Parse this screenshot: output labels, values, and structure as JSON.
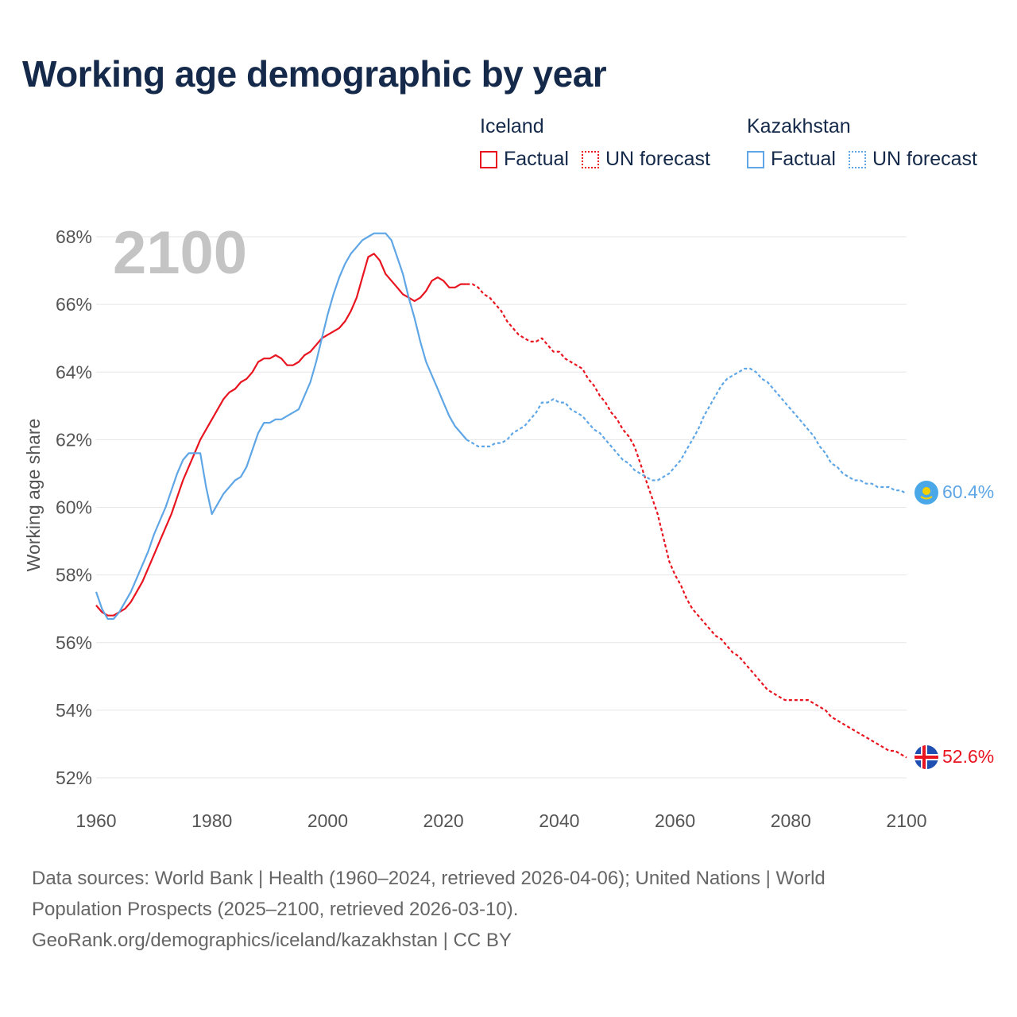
{
  "title": "Working age demographic by year",
  "legend": {
    "iceland": {
      "name": "Iceland",
      "factual": "Factual",
      "forecast": "UN forecast"
    },
    "kazakhstan": {
      "name": "Kazakhstan",
      "factual": "Factual",
      "forecast": "UN forecast"
    }
  },
  "year_watermark": "2100",
  "end_labels": {
    "kazakhstan": "60.4%",
    "iceland": "52.6%"
  },
  "footer": {
    "line1": "Data sources: World Bank | Health (1960–2024, retrieved 2026-04-06); United Nations | World",
    "line2": "Population Prospects (2025–2100, retrieved 2026-03-10).",
    "line3": "GeoRank.org/demographics/iceland/kazakhstan | CC BY"
  },
  "colors": {
    "iceland": "#e8141f",
    "kazakhstan": "#5ea6e6",
    "grid": "#e6e6e6",
    "axis_text": "#555555",
    "title": "#152a4a",
    "watermark": "#c4c4c4"
  },
  "chart_data": {
    "type": "line",
    "title": "Working age demographic by year",
    "xlabel": "",
    "ylabel": "Working age share",
    "xlim": [
      1960,
      2100
    ],
    "ylim": [
      52,
      68
    ],
    "xticks": [
      1960,
      1980,
      2000,
      2020,
      2040,
      2060,
      2080,
      2100
    ],
    "yticks": [
      52,
      54,
      56,
      58,
      60,
      62,
      64,
      66,
      68
    ],
    "ytick_labels": [
      "52%",
      "54%",
      "56%",
      "58%",
      "60%",
      "62%",
      "64%",
      "66%",
      "68%"
    ],
    "factual_end_year": 2024,
    "series": [
      {
        "name": "Iceland",
        "color": "#e8141f",
        "points": [
          [
            1960,
            57.1
          ],
          [
            1961,
            56.9
          ],
          [
            1962,
            56.8
          ],
          [
            1963,
            56.8
          ],
          [
            1964,
            56.9
          ],
          [
            1965,
            57.0
          ],
          [
            1966,
            57.2
          ],
          [
            1967,
            57.5
          ],
          [
            1968,
            57.8
          ],
          [
            1969,
            58.2
          ],
          [
            1970,
            58.6
          ],
          [
            1971,
            59.0
          ],
          [
            1972,
            59.4
          ],
          [
            1973,
            59.8
          ],
          [
            1974,
            60.3
          ],
          [
            1975,
            60.8
          ],
          [
            1976,
            61.2
          ],
          [
            1977,
            61.6
          ],
          [
            1978,
            62.0
          ],
          [
            1979,
            62.3
          ],
          [
            1980,
            62.6
          ],
          [
            1981,
            62.9
          ],
          [
            1982,
            63.2
          ],
          [
            1983,
            63.4
          ],
          [
            1984,
            63.5
          ],
          [
            1985,
            63.7
          ],
          [
            1986,
            63.8
          ],
          [
            1987,
            64.0
          ],
          [
            1988,
            64.3
          ],
          [
            1989,
            64.4
          ],
          [
            1990,
            64.4
          ],
          [
            1991,
            64.5
          ],
          [
            1992,
            64.4
          ],
          [
            1993,
            64.2
          ],
          [
            1994,
            64.2
          ],
          [
            1995,
            64.3
          ],
          [
            1996,
            64.5
          ],
          [
            1997,
            64.6
          ],
          [
            1998,
            64.8
          ],
          [
            1999,
            65.0
          ],
          [
            2000,
            65.1
          ],
          [
            2001,
            65.2
          ],
          [
            2002,
            65.3
          ],
          [
            2003,
            65.5
          ],
          [
            2004,
            65.8
          ],
          [
            2005,
            66.2
          ],
          [
            2006,
            66.8
          ],
          [
            2007,
            67.4
          ],
          [
            2008,
            67.5
          ],
          [
            2009,
            67.3
          ],
          [
            2010,
            66.9
          ],
          [
            2011,
            66.7
          ],
          [
            2012,
            66.5
          ],
          [
            2013,
            66.3
          ],
          [
            2014,
            66.2
          ],
          [
            2015,
            66.1
          ],
          [
            2016,
            66.2
          ],
          [
            2017,
            66.4
          ],
          [
            2018,
            66.7
          ],
          [
            2019,
            66.8
          ],
          [
            2020,
            66.7
          ],
          [
            2021,
            66.5
          ],
          [
            2022,
            66.5
          ],
          [
            2023,
            66.6
          ],
          [
            2024,
            66.6
          ],
          [
            2025,
            66.6
          ],
          [
            2026,
            66.5
          ],
          [
            2027,
            66.3
          ],
          [
            2028,
            66.2
          ],
          [
            2029,
            66.0
          ],
          [
            2030,
            65.8
          ],
          [
            2031,
            65.5
          ],
          [
            2032,
            65.3
          ],
          [
            2033,
            65.1
          ],
          [
            2034,
            65.0
          ],
          [
            2035,
            64.9
          ],
          [
            2036,
            64.9
          ],
          [
            2037,
            65.0
          ],
          [
            2038,
            64.8
          ],
          [
            2039,
            64.6
          ],
          [
            2040,
            64.6
          ],
          [
            2041,
            64.4
          ],
          [
            2042,
            64.3
          ],
          [
            2043,
            64.2
          ],
          [
            2044,
            64.1
          ],
          [
            2045,
            63.8
          ],
          [
            2046,
            63.6
          ],
          [
            2047,
            63.3
          ],
          [
            2048,
            63.1
          ],
          [
            2049,
            62.8
          ],
          [
            2050,
            62.6
          ],
          [
            2051,
            62.3
          ],
          [
            2052,
            62.1
          ],
          [
            2053,
            61.8
          ],
          [
            2054,
            61.3
          ],
          [
            2055,
            60.8
          ],
          [
            2056,
            60.3
          ],
          [
            2057,
            59.8
          ],
          [
            2058,
            59.1
          ],
          [
            2059,
            58.4
          ],
          [
            2060,
            58.0
          ],
          [
            2061,
            57.7
          ],
          [
            2062,
            57.3
          ],
          [
            2063,
            57.0
          ],
          [
            2064,
            56.8
          ],
          [
            2065,
            56.6
          ],
          [
            2066,
            56.4
          ],
          [
            2067,
            56.2
          ],
          [
            2068,
            56.1
          ],
          [
            2069,
            55.9
          ],
          [
            2070,
            55.7
          ],
          [
            2071,
            55.6
          ],
          [
            2072,
            55.4
          ],
          [
            2073,
            55.2
          ],
          [
            2074,
            55.0
          ],
          [
            2075,
            54.8
          ],
          [
            2076,
            54.6
          ],
          [
            2077,
            54.5
          ],
          [
            2078,
            54.4
          ],
          [
            2079,
            54.3
          ],
          [
            2080,
            54.3
          ],
          [
            2081,
            54.3
          ],
          [
            2082,
            54.3
          ],
          [
            2083,
            54.3
          ],
          [
            2084,
            54.2
          ],
          [
            2085,
            54.1
          ],
          [
            2086,
            54.0
          ],
          [
            2087,
            53.8
          ],
          [
            2088,
            53.7
          ],
          [
            2089,
            53.6
          ],
          [
            2090,
            53.5
          ],
          [
            2091,
            53.4
          ],
          [
            2092,
            53.3
          ],
          [
            2093,
            53.2
          ],
          [
            2094,
            53.1
          ],
          [
            2095,
            53.0
          ],
          [
            2096,
            52.9
          ],
          [
            2097,
            52.8
          ],
          [
            2098,
            52.8
          ],
          [
            2099,
            52.7
          ],
          [
            2100,
            52.6
          ]
        ]
      },
      {
        "name": "Kazakhstan",
        "color": "#5ea6e6",
        "points": [
          [
            1960,
            57.5
          ],
          [
            1961,
            57.0
          ],
          [
            1962,
            56.7
          ],
          [
            1963,
            56.7
          ],
          [
            1964,
            56.9
          ],
          [
            1965,
            57.2
          ],
          [
            1966,
            57.5
          ],
          [
            1967,
            57.9
          ],
          [
            1968,
            58.3
          ],
          [
            1969,
            58.7
          ],
          [
            1970,
            59.2
          ],
          [
            1971,
            59.6
          ],
          [
            1972,
            60.0
          ],
          [
            1973,
            60.5
          ],
          [
            1974,
            61.0
          ],
          [
            1975,
            61.4
          ],
          [
            1976,
            61.6
          ],
          [
            1977,
            61.6
          ],
          [
            1978,
            61.6
          ],
          [
            1979,
            60.6
          ],
          [
            1980,
            59.8
          ],
          [
            1981,
            60.1
          ],
          [
            1982,
            60.4
          ],
          [
            1983,
            60.6
          ],
          [
            1984,
            60.8
          ],
          [
            1985,
            60.9
          ],
          [
            1986,
            61.2
          ],
          [
            1987,
            61.7
          ],
          [
            1988,
            62.2
          ],
          [
            1989,
            62.5
          ],
          [
            1990,
            62.5
          ],
          [
            1991,
            62.6
          ],
          [
            1992,
            62.6
          ],
          [
            1993,
            62.7
          ],
          [
            1994,
            62.8
          ],
          [
            1995,
            62.9
          ],
          [
            1996,
            63.3
          ],
          [
            1997,
            63.7
          ],
          [
            1998,
            64.3
          ],
          [
            1999,
            65.0
          ],
          [
            2000,
            65.7
          ],
          [
            2001,
            66.3
          ],
          [
            2002,
            66.8
          ],
          [
            2003,
            67.2
          ],
          [
            2004,
            67.5
          ],
          [
            2005,
            67.7
          ],
          [
            2006,
            67.9
          ],
          [
            2007,
            68.0
          ],
          [
            2008,
            68.1
          ],
          [
            2009,
            68.1
          ],
          [
            2010,
            68.1
          ],
          [
            2011,
            67.9
          ],
          [
            2012,
            67.4
          ],
          [
            2013,
            66.9
          ],
          [
            2014,
            66.2
          ],
          [
            2015,
            65.6
          ],
          [
            2016,
            64.9
          ],
          [
            2017,
            64.3
          ],
          [
            2018,
            63.9
          ],
          [
            2019,
            63.5
          ],
          [
            2020,
            63.1
          ],
          [
            2021,
            62.7
          ],
          [
            2022,
            62.4
          ],
          [
            2023,
            62.2
          ],
          [
            2024,
            62.0
          ],
          [
            2025,
            61.9
          ],
          [
            2026,
            61.8
          ],
          [
            2027,
            61.8
          ],
          [
            2028,
            61.8
          ],
          [
            2029,
            61.9
          ],
          [
            2030,
            61.9
          ],
          [
            2031,
            62.0
          ],
          [
            2032,
            62.2
          ],
          [
            2033,
            62.3
          ],
          [
            2034,
            62.4
          ],
          [
            2035,
            62.6
          ],
          [
            2036,
            62.8
          ],
          [
            2037,
            63.1
          ],
          [
            2038,
            63.1
          ],
          [
            2039,
            63.2
          ],
          [
            2040,
            63.1
          ],
          [
            2041,
            63.1
          ],
          [
            2042,
            62.9
          ],
          [
            2043,
            62.8
          ],
          [
            2044,
            62.7
          ],
          [
            2045,
            62.5
          ],
          [
            2046,
            62.3
          ],
          [
            2047,
            62.2
          ],
          [
            2048,
            62.0
          ],
          [
            2049,
            61.8
          ],
          [
            2050,
            61.6
          ],
          [
            2051,
            61.4
          ],
          [
            2052,
            61.3
          ],
          [
            2053,
            61.1
          ],
          [
            2054,
            61.0
          ],
          [
            2055,
            60.9
          ],
          [
            2056,
            60.8
          ],
          [
            2057,
            60.8
          ],
          [
            2058,
            60.9
          ],
          [
            2059,
            61.0
          ],
          [
            2060,
            61.2
          ],
          [
            2061,
            61.4
          ],
          [
            2062,
            61.7
          ],
          [
            2063,
            62.0
          ],
          [
            2064,
            62.3
          ],
          [
            2065,
            62.7
          ],
          [
            2066,
            63.0
          ],
          [
            2067,
            63.3
          ],
          [
            2068,
            63.6
          ],
          [
            2069,
            63.8
          ],
          [
            2070,
            63.9
          ],
          [
            2071,
            64.0
          ],
          [
            2072,
            64.1
          ],
          [
            2073,
            64.1
          ],
          [
            2074,
            64.0
          ],
          [
            2075,
            63.8
          ],
          [
            2076,
            63.7
          ],
          [
            2077,
            63.5
          ],
          [
            2078,
            63.3
          ],
          [
            2079,
            63.1
          ],
          [
            2080,
            62.9
          ],
          [
            2081,
            62.7
          ],
          [
            2082,
            62.5
          ],
          [
            2083,
            62.3
          ],
          [
            2084,
            62.1
          ],
          [
            2085,
            61.8
          ],
          [
            2086,
            61.6
          ],
          [
            2087,
            61.3
          ],
          [
            2088,
            61.2
          ],
          [
            2089,
            61.0
          ],
          [
            2090,
            60.9
          ],
          [
            2091,
            60.8
          ],
          [
            2092,
            60.8
          ],
          [
            2093,
            60.7
          ],
          [
            2094,
            60.7
          ],
          [
            2095,
            60.6
          ],
          [
            2096,
            60.6
          ],
          [
            2097,
            60.6
          ],
          [
            2098,
            60.5
          ],
          [
            2099,
            60.5
          ],
          [
            2100,
            60.4
          ]
        ]
      }
    ]
  }
}
